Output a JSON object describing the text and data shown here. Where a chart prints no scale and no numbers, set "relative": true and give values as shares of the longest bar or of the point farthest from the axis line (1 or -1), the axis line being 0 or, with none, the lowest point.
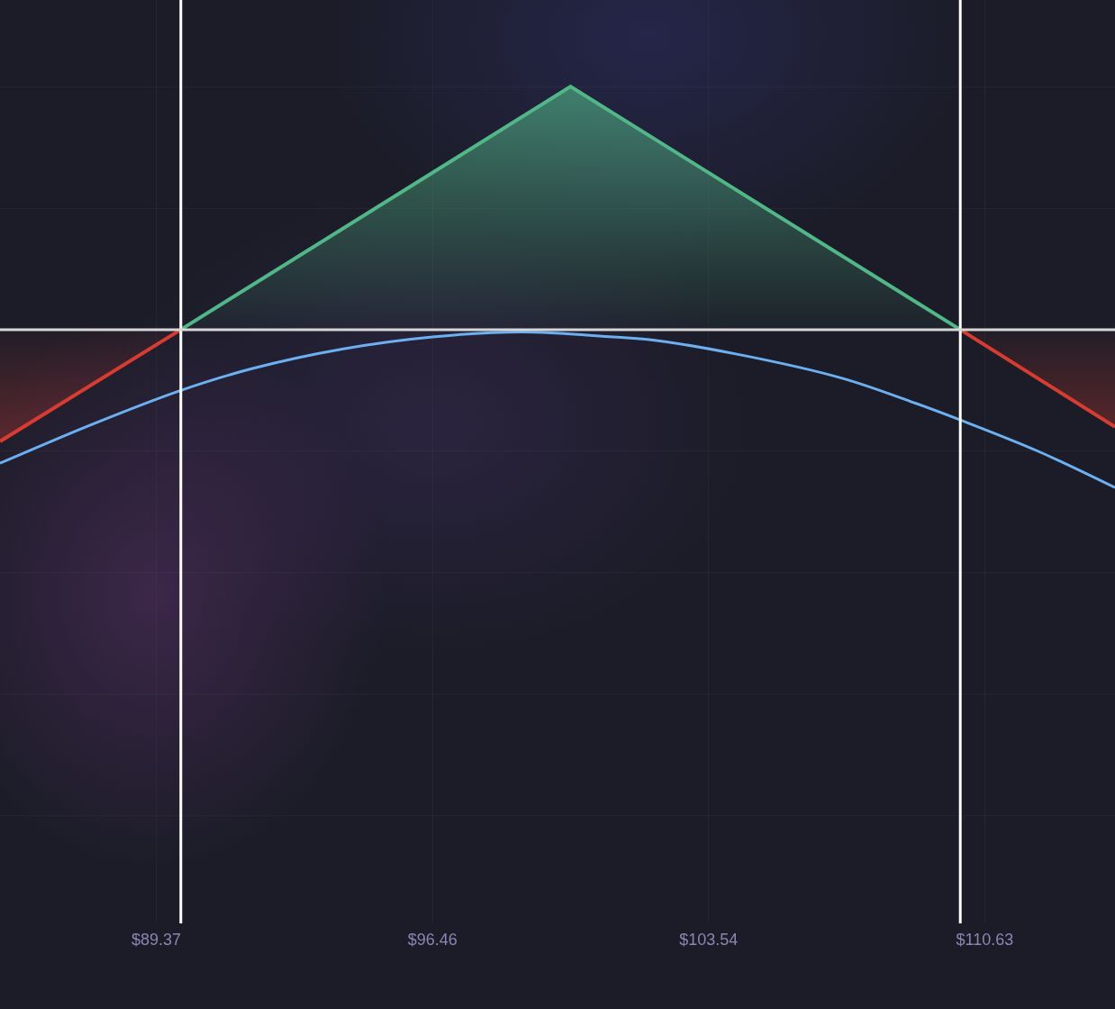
{
  "chart_data": {
    "type": "area",
    "relative": true,
    "series": [
      {
        "color": "#d63c31",
        "x": [
          85.36,
          90
        ],
        "values": [
          -0.46,
          0
        ]
      },
      {
        "color": "#52b788",
        "x": [
          90,
          100,
          110
        ],
        "values": [
          0,
          1,
          0
        ]
      },
      {
        "color": "#d63c31",
        "x": [
          110,
          113.97
        ],
        "values": [
          0,
          -0.4
        ]
      },
      {
        "type": "line",
        "color": "#6cb0f2",
        "x": [
          85.36,
          87.72,
          90,
          91.84,
          94.14,
          96.46,
          98.77,
          101.08,
          101.97,
          104.24,
          106.97,
          108.8,
          109.97,
          111.99,
          113.97
        ],
        "values": [
          -0.55,
          -0.39,
          -0.25,
          -0.16,
          -0.08,
          -0.03,
          -0.01,
          -0.03,
          -0.04,
          -0.1,
          -0.2,
          -0.3,
          -0.37,
          -0.5,
          -0.65
        ]
      }
    ],
    "xlim": [
      85.36,
      113.97
    ],
    "xticks": [
      {
        "value": 89.37,
        "label": "$89.37"
      },
      {
        "value": 96.46,
        "label": "$96.46"
      },
      {
        "value": 103.54,
        "label": "$103.54"
      },
      {
        "value": 110.63,
        "label": "$110.63"
      }
    ],
    "ref_lines": [
      {
        "axis": "x",
        "value": 90,
        "color": "#ffffff"
      },
      {
        "axis": "x",
        "value": 110,
        "color": "#ffffff"
      },
      {
        "axis": "y",
        "value": 0,
        "color": "#d6d6d6"
      }
    ],
    "grid": true,
    "tick_labels": "x"
  }
}
